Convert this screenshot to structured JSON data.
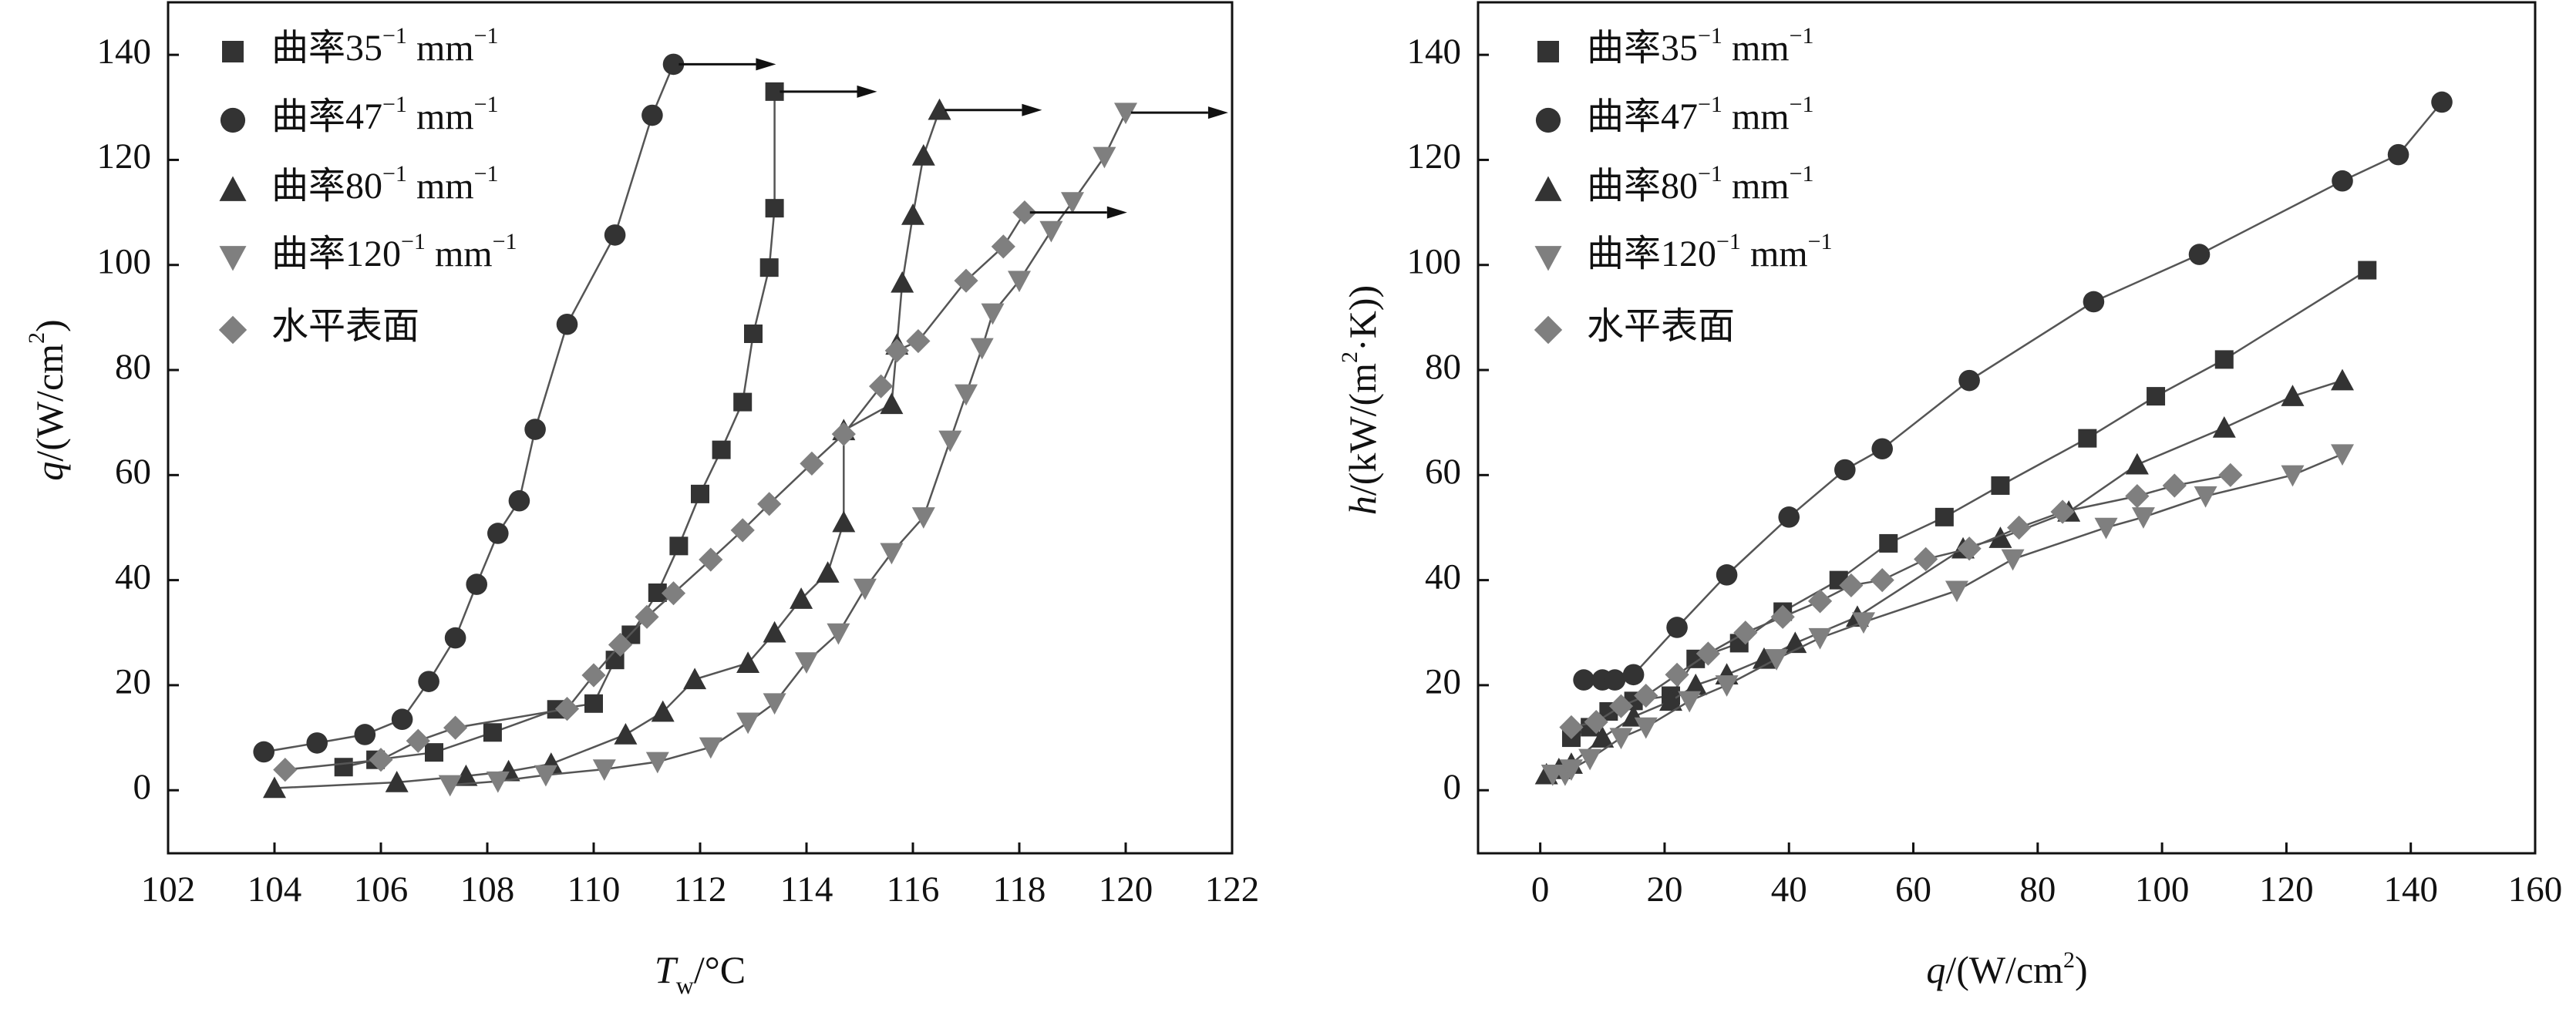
{
  "figure": {
    "legend_suffix": " mm",
    "legend_exponent": "−1",
    "colors": {
      "axis": "#111111",
      "dark_marker": "#333333",
      "gray_marker": "#7f7f7f",
      "line": "#555555",
      "arrow": "#111111"
    }
  },
  "chart_data": [
    {
      "type": "line",
      "panel": "left",
      "title": "",
      "xlabel": {
        "main": "T",
        "sub": "w",
        "rest": "/°C"
      },
      "ylabel": {
        "main": "q",
        "pre": "/(W/cm",
        "sup": "2",
        "post": ")"
      },
      "xlim": [
        102,
        122
      ],
      "ylim": [
        -12,
        150
      ],
      "xticks": [
        102,
        104,
        106,
        108,
        110,
        112,
        114,
        116,
        118,
        120,
        122
      ],
      "yticks": [
        0,
        20,
        40,
        60,
        80,
        100,
        120,
        140
      ],
      "legend_position": "top-left",
      "series": [
        {
          "name": "曲率35",
          "exponent": "−1",
          "unit": " mm",
          "marker": "square",
          "shade": "dark",
          "points": [
            [
              105.3,
              4.4
            ],
            [
              105.9,
              5.8
            ],
            [
              107.0,
              7.2
            ],
            [
              108.1,
              11.0
            ],
            [
              109.3,
              15.4
            ],
            [
              110.0,
              16.5
            ],
            [
              110.4,
              24.8
            ],
            [
              110.7,
              29.6
            ],
            [
              111.2,
              37.6
            ],
            [
              111.6,
              46.5
            ],
            [
              112.0,
              56.4
            ],
            [
              112.4,
              64.8
            ],
            [
              112.8,
              73.9
            ],
            [
              113.0,
              86.9
            ],
            [
              113.3,
              99.5
            ],
            [
              113.4,
              110.8
            ],
            [
              113.4,
              133.0
            ]
          ]
        },
        {
          "name": "曲率47",
          "exponent": "−1",
          "unit": " mm",
          "marker": "circle",
          "shade": "dark",
          "points": [
            [
              103.8,
              7.3
            ],
            [
              104.8,
              9.0
            ],
            [
              105.7,
              10.6
            ],
            [
              106.4,
              13.5
            ],
            [
              106.9,
              20.7
            ],
            [
              107.4,
              29.0
            ],
            [
              107.8,
              39.2
            ],
            [
              108.2,
              48.9
            ],
            [
              108.6,
              55.1
            ],
            [
              108.9,
              68.7
            ],
            [
              109.5,
              88.7
            ],
            [
              110.4,
              105.7
            ],
            [
              111.1,
              128.5
            ],
            [
              111.5,
              138.2
            ]
          ]
        },
        {
          "name": "曲率80",
          "exponent": "−1",
          "unit": " mm",
          "marker": "triangle-up",
          "shade": "dark",
          "points": [
            [
              104.0,
              0.4
            ],
            [
              106.3,
              1.5
            ],
            [
              107.6,
              2.7
            ],
            [
              108.4,
              3.6
            ],
            [
              109.2,
              5.0
            ],
            [
              110.6,
              10.6
            ],
            [
              111.3,
              14.9
            ],
            [
              111.9,
              21.1
            ],
            [
              112.9,
              24.2
            ],
            [
              113.4,
              30.0
            ],
            [
              113.9,
              36.4
            ],
            [
              114.4,
              41.4
            ],
            [
              114.7,
              51.0
            ],
            [
              114.7,
              68.5
            ],
            [
              115.6,
              73.5
            ],
            [
              115.7,
              84.8
            ],
            [
              115.8,
              96.6
            ],
            [
              116.0,
              109.5
            ],
            [
              116.2,
              120.8
            ],
            [
              116.5,
              129.5
            ]
          ]
        },
        {
          "name": "曲率120",
          "exponent": "−1",
          "unit": " mm",
          "marker": "triangle-down",
          "shade": "gray",
          "points": [
            [
              107.3,
              1.0
            ],
            [
              108.2,
              1.7
            ],
            [
              109.1,
              2.9
            ],
            [
              110.2,
              4.0
            ],
            [
              111.2,
              5.4
            ],
            [
              112.2,
              8.2
            ],
            [
              112.9,
              12.9
            ],
            [
              113.4,
              16.6
            ],
            [
              114.0,
              24.4
            ],
            [
              114.6,
              29.9
            ],
            [
              115.1,
              38.4
            ],
            [
              115.6,
              45.2
            ],
            [
              116.2,
              52.0
            ],
            [
              116.7,
              66.6
            ],
            [
              117.0,
              75.4
            ],
            [
              117.3,
              84.2
            ],
            [
              117.5,
              90.8
            ],
            [
              118.0,
              97.0
            ],
            [
              118.6,
              106.5
            ],
            [
              119.0,
              112.0
            ],
            [
              119.6,
              120.6
            ],
            [
              120.0,
              129.0
            ]
          ]
        },
        {
          "name": "水平表面",
          "exponent": "",
          "unit": "",
          "marker": "diamond",
          "shade": "gray",
          "points": [
            [
              104.2,
              3.9
            ],
            [
              106.0,
              5.8
            ],
            [
              106.7,
              9.4
            ],
            [
              107.4,
              11.9
            ],
            [
              109.5,
              15.5
            ],
            [
              110.0,
              21.9
            ],
            [
              110.5,
              27.7
            ],
            [
              111.0,
              33.0
            ],
            [
              111.5,
              37.5
            ],
            [
              112.2,
              43.9
            ],
            [
              112.8,
              49.5
            ],
            [
              113.3,
              54.5
            ],
            [
              114.1,
              62.2
            ],
            [
              114.7,
              67.8
            ],
            [
              115.4,
              76.9
            ],
            [
              115.7,
              83.7
            ],
            [
              116.1,
              85.5
            ],
            [
              117.0,
              97.0
            ],
            [
              117.7,
              103.5
            ],
            [
              118.1,
              110.0
            ]
          ]
        }
      ],
      "arrows": [
        [
          111.6,
          138.2
        ],
        [
          113.5,
          133.0
        ],
        [
          116.6,
          129.5
        ],
        [
          118.2,
          110.0
        ],
        [
          120.1,
          129.0
        ]
      ]
    },
    {
      "type": "line",
      "panel": "right",
      "title": "",
      "xlabel": {
        "main": "q",
        "pre": "/(W/cm",
        "sup": "2",
        "post": ")"
      },
      "ylabel": {
        "main": "h",
        "pre": "/(kW/(m",
        "sup": "2",
        "post": "·K))"
      },
      "xlim": [
        -10,
        160
      ],
      "ylim": [
        -12,
        150
      ],
      "xticks": [
        0,
        20,
        40,
        60,
        80,
        100,
        120,
        140,
        160
      ],
      "yticks": [
        0,
        20,
        40,
        60,
        80,
        100,
        120,
        140
      ],
      "legend_position": "top-left",
      "series": [
        {
          "name": "曲率35",
          "exponent": "−1",
          "unit": " mm",
          "marker": "square",
          "shade": "dark",
          "points": [
            [
              5,
              10
            ],
            [
              8,
              12
            ],
            [
              11,
              15
            ],
            [
              15,
              17
            ],
            [
              21,
              18
            ],
            [
              25,
              25
            ],
            [
              32,
              28
            ],
            [
              39,
              34
            ],
            [
              48,
              40
            ],
            [
              56,
              47
            ],
            [
              65,
              52
            ],
            [
              74,
              58
            ],
            [
              88,
              67
            ],
            [
              99,
              75
            ],
            [
              110,
              82
            ],
            [
              133,
              99
            ]
          ]
        },
        {
          "name": "曲率47",
          "exponent": "−1",
          "unit": " mm",
          "marker": "circle",
          "shade": "dark",
          "points": [
            [
              7,
              21
            ],
            [
              10,
              21
            ],
            [
              12,
              21
            ],
            [
              15,
              22
            ],
            [
              22,
              31
            ],
            [
              30,
              41
            ],
            [
              40,
              52
            ],
            [
              49,
              61
            ],
            [
              55,
              65
            ],
            [
              69,
              78
            ],
            [
              89,
              93
            ],
            [
              106,
              102
            ],
            [
              129,
              116
            ],
            [
              138,
              121
            ],
            [
              145,
              131
            ]
          ]
        },
        {
          "name": "曲率80",
          "exponent": "−1",
          "unit": " mm",
          "marker": "triangle-up",
          "shade": "dark",
          "points": [
            [
              1,
              3
            ],
            [
              3,
              4
            ],
            [
              5,
              5
            ],
            [
              10,
              10
            ],
            [
              15,
              14
            ],
            [
              21,
              17
            ],
            [
              25,
              20
            ],
            [
              30,
              22
            ],
            [
              36,
              25
            ],
            [
              41,
              28
            ],
            [
              51,
              33
            ],
            [
              68,
              46
            ],
            [
              74,
              48
            ],
            [
              85,
              53
            ],
            [
              96,
              62
            ],
            [
              110,
              69
            ],
            [
              121,
              75
            ],
            [
              129,
              78
            ]
          ]
        },
        {
          "name": "曲率120",
          "exponent": "−1",
          "unit": " mm",
          "marker": "triangle-down",
          "shade": "gray",
          "points": [
            [
              2,
              3
            ],
            [
              4,
              3
            ],
            [
              5,
              4
            ],
            [
              8,
              6
            ],
            [
              13,
              10
            ],
            [
              17,
              12
            ],
            [
              24,
              17
            ],
            [
              30,
              20
            ],
            [
              38,
              25
            ],
            [
              45,
              29
            ],
            [
              52,
              32
            ],
            [
              67,
              38
            ],
            [
              76,
              44
            ],
            [
              91,
              50
            ],
            [
              97,
              52
            ],
            [
              107,
              56
            ],
            [
              121,
              60
            ],
            [
              129,
              64
            ]
          ]
        },
        {
          "name": "水平表面",
          "exponent": "",
          "unit": "",
          "marker": "diamond",
          "shade": "gray",
          "points": [
            [
              5,
              12
            ],
            [
              9,
              13
            ],
            [
              13,
              16
            ],
            [
              17,
              18
            ],
            [
              22,
              22
            ],
            [
              27,
              26
            ],
            [
              33,
              30
            ],
            [
              39,
              33
            ],
            [
              45,
              36
            ],
            [
              50,
              39
            ],
            [
              55,
              40
            ],
            [
              62,
              44
            ],
            [
              69,
              46
            ],
            [
              77,
              50
            ],
            [
              84,
              53
            ],
            [
              96,
              56
            ],
            [
              102,
              58
            ],
            [
              111,
              60
            ]
          ]
        }
      ],
      "arrows": []
    }
  ]
}
